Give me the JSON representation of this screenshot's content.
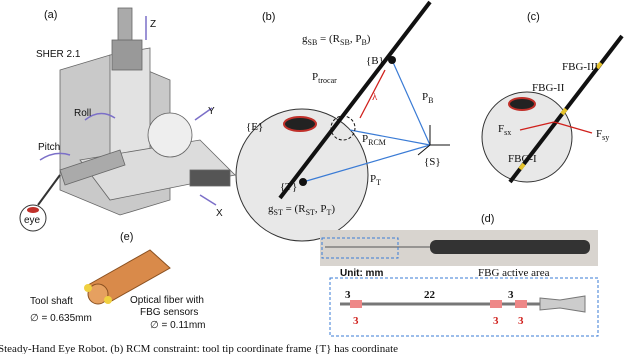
{
  "panel_a": {
    "label": "(a)",
    "title": "SHER 2.1",
    "axis_z": "Z",
    "roll": "Roll",
    "axis_y": "Y",
    "pitch": "Pitch",
    "axis_x": "X",
    "eye": "eye"
  },
  "panel_b": {
    "label": "(b)",
    "g_sb": [
      "g",
      "SB",
      " = (R",
      "SB",
      ", P",
      "B",
      ")"
    ],
    "frame_b": "{B}",
    "p_trocar": [
      "P",
      "trocar"
    ],
    "lambda": "λ",
    "p_b": [
      "P",
      "B"
    ],
    "frame_e": "{E}",
    "p_rcm": [
      "P",
      "RCM"
    ],
    "frame_s": "{S}",
    "frame_t": "{T}",
    "p_t": [
      "P",
      "T"
    ],
    "g_st": [
      "g",
      "ST",
      " = (R",
      "ST",
      ", P",
      "T",
      ")"
    ]
  },
  "panel_c": {
    "label": "(c)",
    "fbg3": "FBG-III",
    "fbg2": "FBG-II",
    "f_sx": [
      "F",
      "sx"
    ],
    "f_sy": [
      "F",
      "sy"
    ],
    "fbg1": "FBG-I"
  },
  "panel_d": {
    "label": "(d)",
    "unit": "Unit: mm",
    "fbg_area": "FBG active area",
    "dims": [
      "3",
      "22",
      "3",
      "3",
      "3",
      "3"
    ]
  },
  "panel_e": {
    "label": "(e)",
    "shaft": "Tool shaft",
    "shaft_dia": "∅ = 0.635mm",
    "fiber_1": "Optical fiber with",
    "fiber_2": "FBG sensors",
    "fiber_dia": "∅ = 0.11mm"
  },
  "caption": "Steady-Hand Eye Robot. (b) RCM constraint: tool tip coordinate frame {T} has coordinate"
}
